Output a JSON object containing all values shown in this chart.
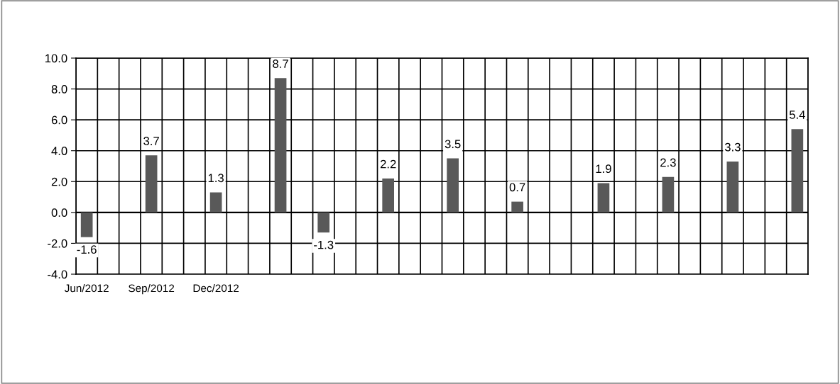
{
  "chart_data": {
    "type": "bar",
    "categories": [
      "Jun/2012",
      null,
      null,
      "Sep/2012",
      null,
      null,
      "Dec/2012",
      null,
      null,
      null,
      null,
      null,
      null,
      null,
      null,
      null,
      null,
      null,
      null,
      null,
      null,
      null,
      null,
      null,
      null,
      null,
      null,
      null,
      null,
      null,
      null,
      null,
      null,
      null
    ],
    "values": [
      -1.6,
      null,
      null,
      3.7,
      null,
      null,
      1.3,
      null,
      null,
      8.7,
      null,
      -1.3,
      null,
      null,
      2.2,
      null,
      null,
      3.5,
      null,
      null,
      0.7,
      null,
      null,
      null,
      1.9,
      null,
      null,
      2.3,
      null,
      null,
      3.3,
      null,
      null,
      5.4
    ],
    "color": "#595959",
    "ylim": [
      -4,
      10
    ],
    "yticks": [
      {
        "value": -4,
        "label": "-4.0"
      },
      {
        "value": -2,
        "label": "-2.0"
      },
      {
        "value": 0,
        "label": "0.0"
      },
      {
        "value": 2,
        "label": "2.0"
      },
      {
        "value": 4,
        "label": "4.0"
      },
      {
        "value": 6,
        "label": "6.0"
      },
      {
        "value": 8,
        "label": "8.0"
      },
      {
        "value": 10,
        "label": "10.0"
      }
    ],
    "grid": true,
    "data_labels": true
  }
}
